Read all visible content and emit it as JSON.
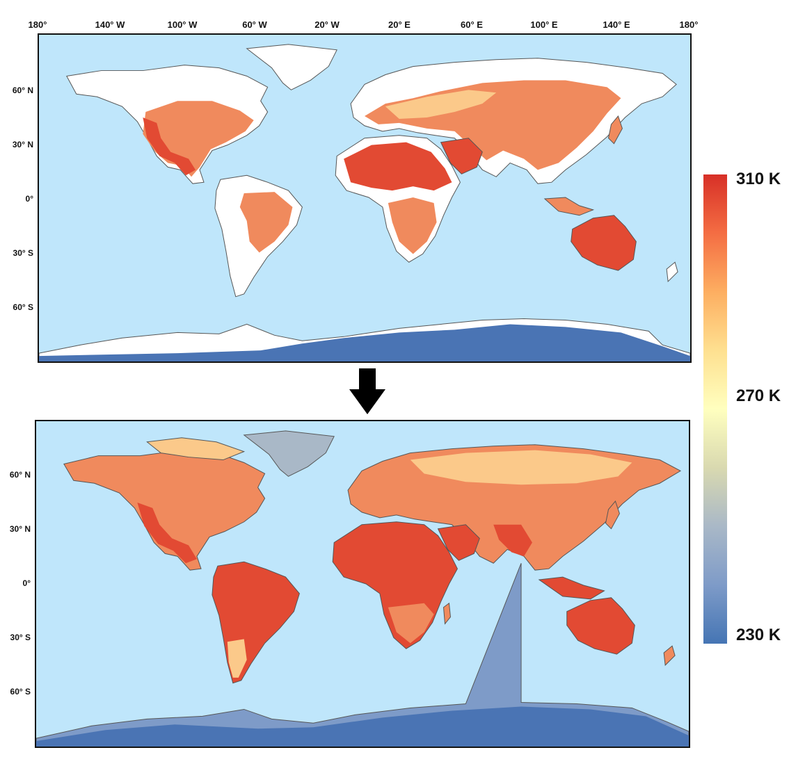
{
  "longitude_ticks": [
    "180°",
    "140° W",
    "100° W",
    "60° W",
    "20° W",
    "20° E",
    "60° E",
    "100° E",
    "140° E",
    "180°"
  ],
  "latitude_ticks": [
    "60° N",
    "30° N",
    "0°",
    "30° S",
    "60° S"
  ],
  "legend": {
    "max_label": "310 K",
    "mid_label": "270 K",
    "min_label": "230 K",
    "colors": [
      "#d73027",
      "#f46d43",
      "#fdae61",
      "#fee090",
      "#ffffbf",
      "#d9d9b0",
      "#a9b8c7",
      "#7e9bc8",
      "#4575b4"
    ]
  },
  "maps": [
    {
      "name": "before",
      "description_visible": false,
      "land_color_missing": "#ffffff"
    },
    {
      "name": "after"
    }
  ],
  "colors": {
    "ocean": "#bfe6fb",
    "coast": "#555555",
    "hot": "#e24a33",
    "warm": "#f08a5d",
    "mild": "#fbc98a",
    "cold": "#4a74b4",
    "missing": "#ffffff"
  }
}
